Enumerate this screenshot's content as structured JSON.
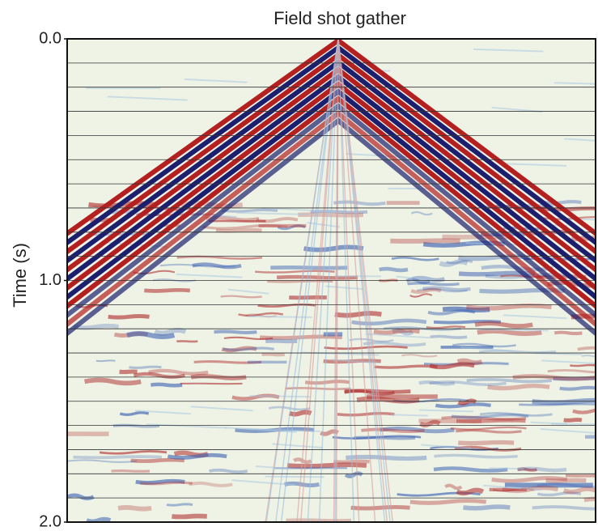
{
  "chart_data": {
    "type": "image",
    "title": "Field shot gather",
    "ylabel": "Time (s)",
    "ylim": [
      0,
      2
    ],
    "yticks": [
      {
        "value": 0,
        "label": "0.0"
      },
      {
        "value": 1,
        "label": "1.0"
      },
      {
        "value": 2,
        "label": "2.0"
      }
    ]
  }
}
